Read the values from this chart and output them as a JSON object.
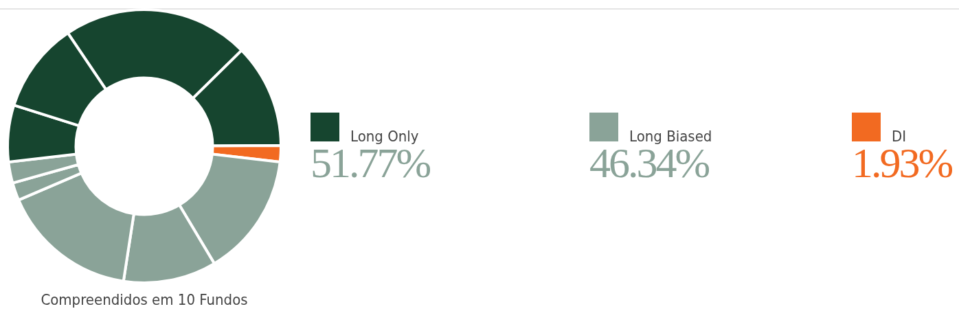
{
  "chart_data": {
    "type": "donut",
    "categories": [
      null,
      null,
      null,
      null,
      null,
      null,
      null,
      null,
      null,
      null
    ],
    "values": [
      22.07,
      12.3,
      1.93,
      14.6,
      11.0,
      16.14,
      2.1,
      2.5,
      6.7,
      10.7
    ],
    "colors": [
      "#16452f",
      "#16452f",
      "#f26a21",
      "#8aa398",
      "#8aa398",
      "#8aa398",
      "#8aa398",
      "#8aa398",
      "#16452f",
      "#16452f"
    ],
    "annotations": [
      "Long Only",
      "51.77%",
      "Long Biased",
      "46.34%",
      "DI",
      "1.93%",
      "Compreendidos em 10 Fundos"
    ]
  }
}
